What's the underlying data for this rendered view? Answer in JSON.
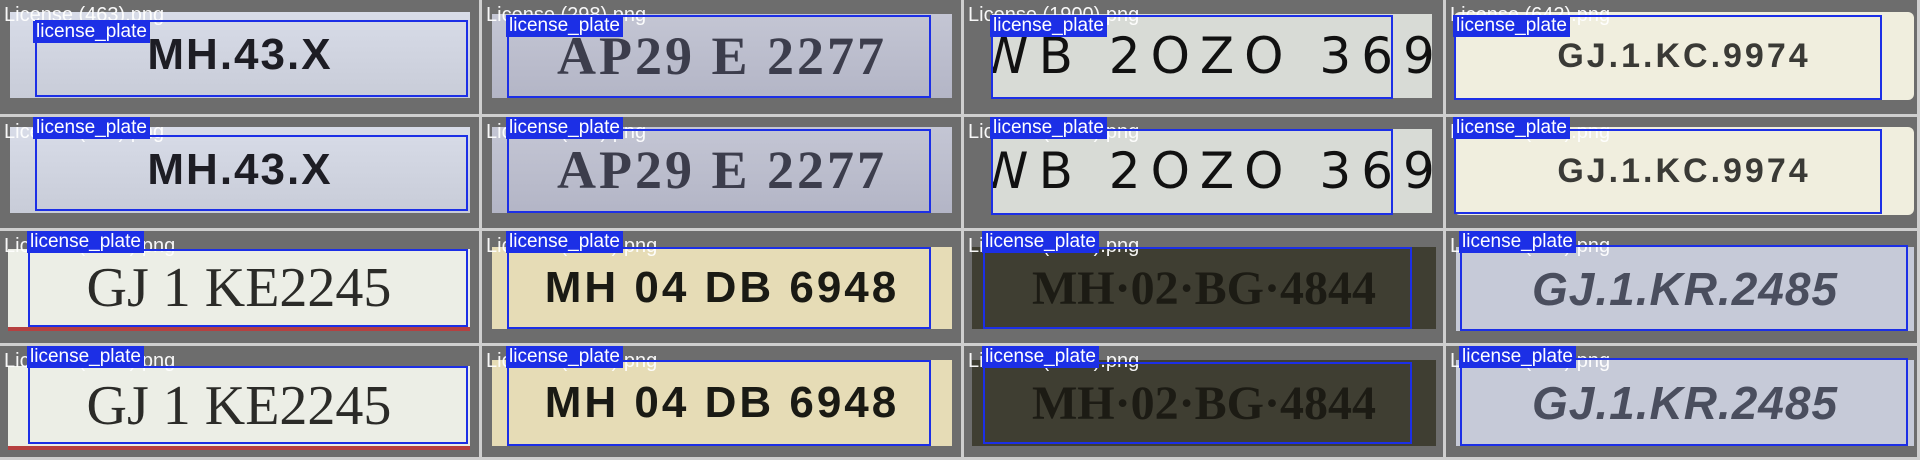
{
  "detection_label": "license_plate",
  "colors": {
    "box": "#1c2fe6",
    "label_bg": "#1c2fe6",
    "label_text": "#ffffff",
    "grid_line": "#cfcfcf"
  },
  "cells": [
    {
      "filename": "License (463).png",
      "plate_text": "MH.43.X"
    },
    {
      "filename": "License (298).png",
      "plate_text": "AP29 E 2277"
    },
    {
      "filename": "License (1900).png",
      "plate_text": "WB 2OZO 369"
    },
    {
      "filename": "License (642).png",
      "plate_text": "GJ.1.KC.9974"
    },
    {
      "filename": "License (464).png",
      "plate_text": "MH.43.X"
    },
    {
      "filename": "License (307).png",
      "plate_text": "AP29 E 2277"
    },
    {
      "filename": "License (1899).png",
      "plate_text": "WB 2OZO 369"
    },
    {
      "filename": "License (641).png",
      "plate_text": "GJ.1.KC.9974"
    },
    {
      "filename": "License (1265).png",
      "plate_text": "GJ 1 KE2245"
    },
    {
      "filename": "License (1589).png",
      "plate_text": "MH 04 DB 6948"
    },
    {
      "filename": "License (4020).png",
      "plate_text": "MH·02·BG·4844"
    },
    {
      "filename": "License (899).png",
      "plate_text": "GJ.1.KR.2485"
    },
    {
      "filename": "License (1266).png",
      "plate_text": "GJ 1 KE2245"
    },
    {
      "filename": "License (1590).png",
      "plate_text": "MH 04 DB 6948"
    },
    {
      "filename": "License (4019).png",
      "plate_text": "MH·02·BG·4844"
    },
    {
      "filename": "License (900).png",
      "plate_text": "GJ.1.KR.2485"
    }
  ]
}
